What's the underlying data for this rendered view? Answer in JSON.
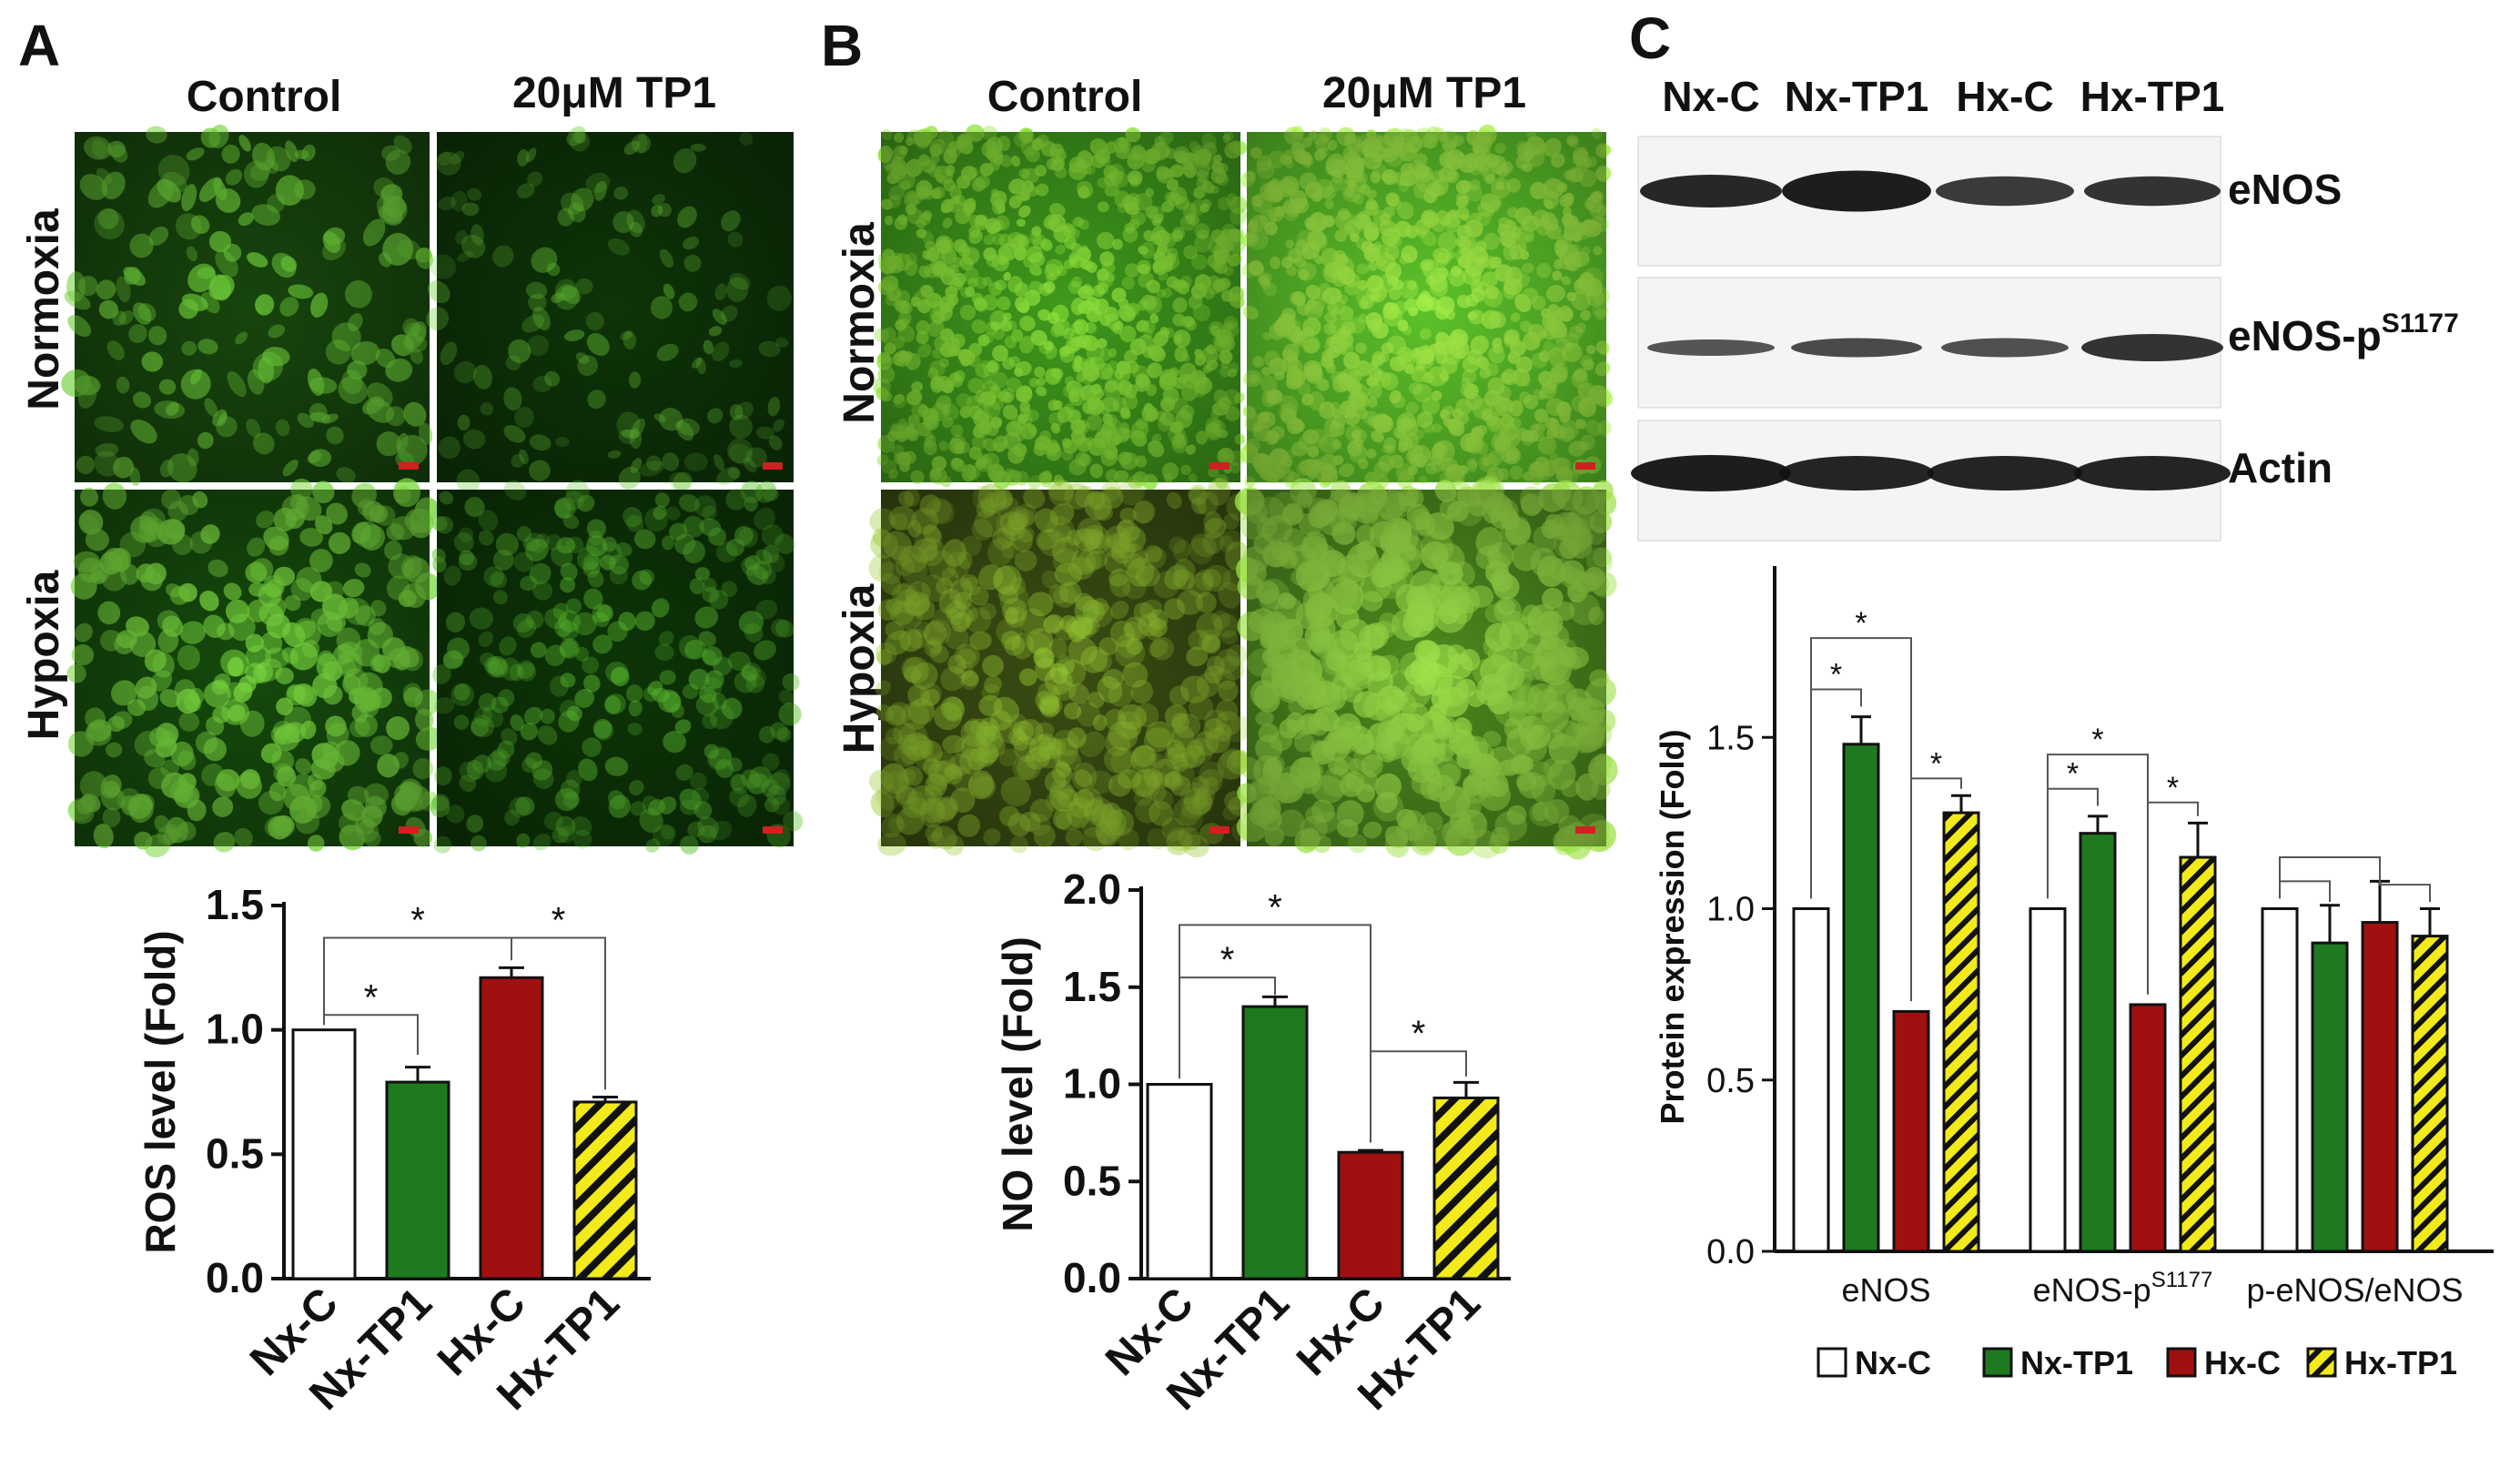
{
  "panels": {
    "A": {
      "letter": "A",
      "col_labels": [
        "Control",
        "20μM TP1"
      ],
      "row_labels": [
        "Normoxia",
        "Hypoxia"
      ]
    },
    "B": {
      "letter": "B",
      "col_labels": [
        "Control",
        "20μM TP1"
      ],
      "row_labels": [
        "Normoxia",
        "Hypoxia"
      ]
    },
    "C": {
      "letter": "C",
      "blot_lanes": [
        "Nx-C",
        "Nx-TP1",
        "Hx-C",
        "Hx-TP1"
      ],
      "blot_labels": [
        {
          "base": "eNOS",
          "sup": ""
        },
        {
          "base": "eNOS-p",
          "sup": "S1177"
        },
        {
          "base": "Actin",
          "sup": ""
        }
      ]
    }
  },
  "colors": {
    "Nx-C": "#ffffff",
    "Nx-TP1": "#1f7a1f",
    "Hx-C": "#a01010",
    "Hx-TP1": "#f2ea1a",
    "fluor_dim": "#0f3a08",
    "fluor_bright": "#4fd12a",
    "cells_A": "#6fcf3a",
    "cells_B": "#8be63a"
  },
  "chart_data": [
    {
      "type": "bar",
      "panel": "A",
      "categories": [
        "Nx-C",
        "Nx-TP1",
        "Hx-C",
        "Hx-TP1"
      ],
      "values": [
        1.0,
        0.79,
        1.21,
        0.71
      ],
      "errors": [
        0.0,
        0.06,
        0.04,
        0.02
      ],
      "ylabel": "ROS level (Fold)",
      "ylim": [
        0,
        1.5
      ],
      "yticks": [
        "0.0",
        "0.5",
        "1.0",
        "1.5"
      ],
      "significance": [
        {
          "pair": [
            "Nx-C",
            "Nx-TP1"
          ],
          "label": "*"
        },
        {
          "pair": [
            "Nx-C",
            "Hx-C"
          ],
          "label": "*"
        },
        {
          "pair": [
            "Hx-C",
            "Hx-TP1"
          ],
          "label": "*"
        }
      ]
    },
    {
      "type": "bar",
      "panel": "B",
      "categories": [
        "Nx-C",
        "Nx-TP1",
        "Hx-C",
        "Hx-TP1"
      ],
      "values": [
        1.0,
        1.4,
        0.65,
        0.93
      ],
      "errors": [
        0.0,
        0.05,
        0.01,
        0.08
      ],
      "ylabel": "NO level (Fold)",
      "ylim": [
        0,
        2.0
      ],
      "yticks": [
        "0.0",
        "0.5",
        "1.0",
        "1.5",
        "2.0"
      ],
      "significance": [
        {
          "pair": [
            "Nx-C",
            "Nx-TP1"
          ],
          "label": "*"
        },
        {
          "pair": [
            "Nx-C",
            "Hx-C"
          ],
          "label": "*"
        },
        {
          "pair": [
            "Hx-C",
            "Hx-TP1"
          ],
          "label": "*"
        }
      ]
    },
    {
      "type": "bar",
      "panel": "C",
      "groups": [
        {
          "base": "eNOS",
          "sup": ""
        },
        {
          "base": "eNOS-p",
          "sup": "S1177"
        },
        {
          "base": "p-eNOS/eNOS",
          "sup": ""
        }
      ],
      "series": [
        {
          "name": "Nx-C",
          "values": [
            1.0,
            1.0,
            1.0
          ],
          "errors": [
            0.0,
            0.0,
            0.0
          ]
        },
        {
          "name": "Nx-TP1",
          "values": [
            1.48,
            1.22,
            0.9
          ],
          "errors": [
            0.08,
            0.05,
            0.11
          ]
        },
        {
          "name": "Hx-C",
          "values": [
            0.7,
            0.72,
            0.96
          ],
          "errors": [
            0.005,
            0.005,
            0.12
          ]
        },
        {
          "name": "Hx-TP1",
          "values": [
            1.28,
            1.15,
            0.92
          ],
          "errors": [
            0.05,
            0.1,
            0.08
          ]
        }
      ],
      "ylabel": "Protein expression (Fold)",
      "ylim": [
        0,
        2.0
      ],
      "yticks": [
        "0.0",
        "0.5",
        "1.0",
        "1.5"
      ],
      "legend": "bottom",
      "significance_label": "*"
    }
  ]
}
